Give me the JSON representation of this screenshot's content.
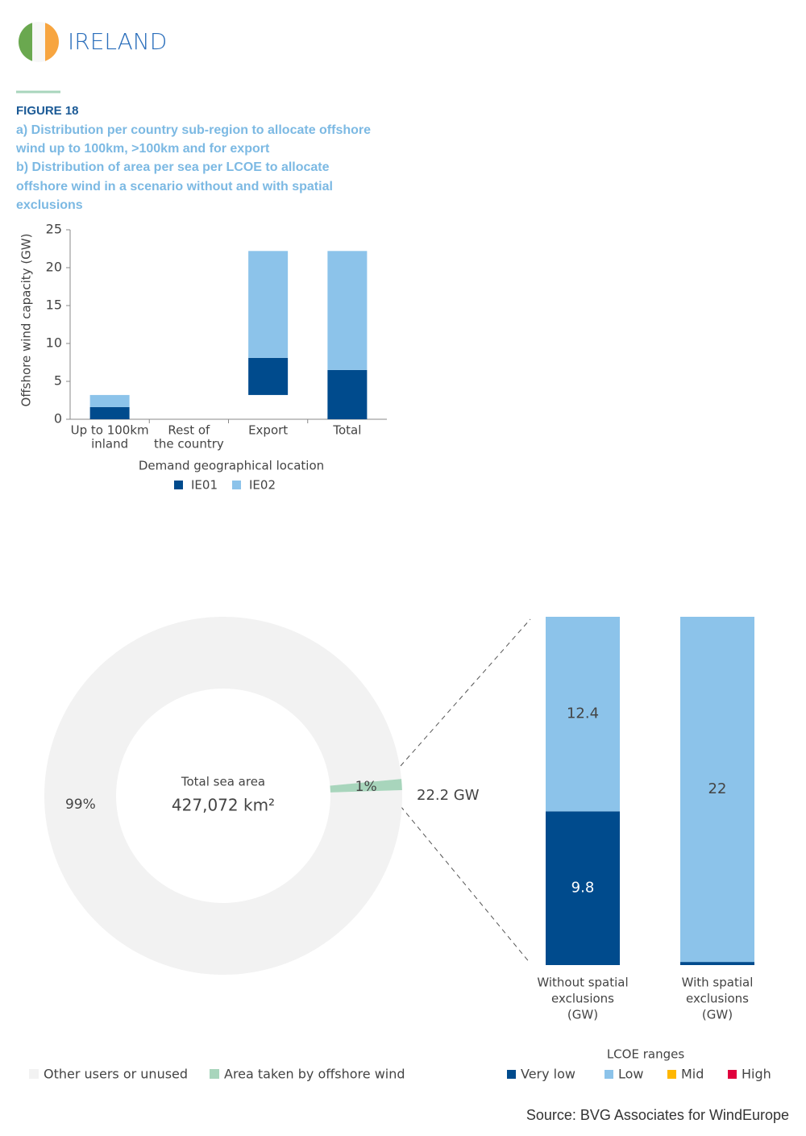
{
  "header": {
    "title": "IRELAND"
  },
  "figure": {
    "label": "FIGURE 18",
    "caption": [
      "a) Distribution per country sub-region to allocate offshore",
      "wind up to 100km, >100km and for export",
      "b) Distribution of area per sea per LCOE to allocate",
      "offshore wind in a scenario without and with spatial",
      "exclusions"
    ]
  },
  "chart_data": [
    {
      "type": "bar",
      "stacked": true,
      "ylabel": "Offshore wind capacity (GW)",
      "xlabel": "Demand geographical location",
      "categories": [
        [
          "Up to 100km",
          "inland"
        ],
        [
          "Rest of",
          "the country"
        ],
        [
          "Export"
        ],
        [
          "Total"
        ]
      ],
      "base": [
        0,
        0,
        3.2,
        0
      ],
      "series": [
        {
          "name": "IE01",
          "color": "#004b8d",
          "values": [
            1.6,
            0,
            4.9,
            6.5
          ]
        },
        {
          "name": "IE02",
          "color": "#8cc3ea",
          "values": [
            1.6,
            0,
            14.1,
            15.7
          ]
        }
      ],
      "ylim": [
        0,
        25
      ],
      "yticks": [
        0,
        5,
        10,
        15,
        20,
        25
      ]
    },
    {
      "type": "pie",
      "donut": true,
      "center_text": [
        "Total sea area",
        "427,072 km²"
      ],
      "labels": [
        "Other users or unused",
        "Area taken by offshore wind"
      ],
      "colors": [
        "#f2f2f2",
        "#a8d5bc"
      ],
      "values": [
        99,
        1
      ],
      "value_labels": [
        "99%",
        "1%"
      ],
      "annotation": "22.2 GW"
    },
    {
      "type": "stackedcolumn",
      "legend_title": "LCOE ranges",
      "categories": [
        [
          "Without spatial",
          "exclusions",
          "(GW)"
        ],
        [
          "With spatial",
          "exclusions",
          "(GW)"
        ]
      ],
      "series": [
        {
          "name": "Very low",
          "color": "#004b8d",
          "values": [
            9.8,
            0.2
          ]
        },
        {
          "name": "Low",
          "color": "#8cc3ea",
          "values": [
            12.4,
            22
          ]
        },
        {
          "name": "Mid",
          "color": "#ffb700",
          "values": [
            0,
            0
          ]
        },
        {
          "name": "High",
          "color": "#e0003c",
          "values": [
            0,
            0
          ]
        }
      ]
    }
  ],
  "source": "Source: BVG Associates for WindEurope"
}
